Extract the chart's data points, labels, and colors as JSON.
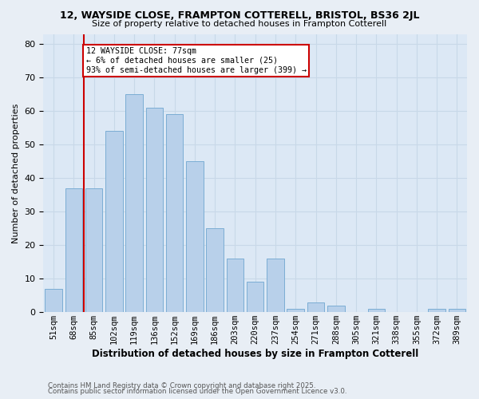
{
  "title1": "12, WAYSIDE CLOSE, FRAMPTON COTTERELL, BRISTOL, BS36 2JL",
  "title2": "Size of property relative to detached houses in Frampton Cotterell",
  "xlabel": "Distribution of detached houses by size in Frampton Cotterell",
  "ylabel": "Number of detached properties",
  "bins": [
    "51sqm",
    "68sqm",
    "85sqm",
    "102sqm",
    "119sqm",
    "136sqm",
    "152sqm",
    "169sqm",
    "186sqm",
    "203sqm",
    "220sqm",
    "237sqm",
    "254sqm",
    "271sqm",
    "288sqm",
    "305sqm",
    "321sqm",
    "338sqm",
    "355sqm",
    "372sqm",
    "389sqm"
  ],
  "counts": [
    7,
    37,
    37,
    54,
    65,
    61,
    59,
    45,
    25,
    16,
    9,
    16,
    1,
    3,
    2,
    0,
    1,
    0,
    0,
    1,
    1
  ],
  "bar_color": "#b8d0ea",
  "bar_edge_color": "#7badd4",
  "red_line_x": 1.5,
  "red_line_color": "#cc0000",
  "annotation_text": "12 WAYSIDE CLOSE: 77sqm\n← 6% of detached houses are smaller (25)\n93% of semi-detached houses are larger (399) →",
  "annotation_box_color": "#ffffff",
  "annotation_box_edge": "#cc0000",
  "ylim": [
    0,
    83
  ],
  "yticks": [
    0,
    10,
    20,
    30,
    40,
    50,
    60,
    70,
    80
  ],
  "grid_color": "#c8d8e8",
  "background_color": "#dce8f5",
  "fig_background": "#e8eef5",
  "footer1": "Contains HM Land Registry data © Crown copyright and database right 2025.",
  "footer2": "Contains public sector information licensed under the Open Government Licence v3.0."
}
